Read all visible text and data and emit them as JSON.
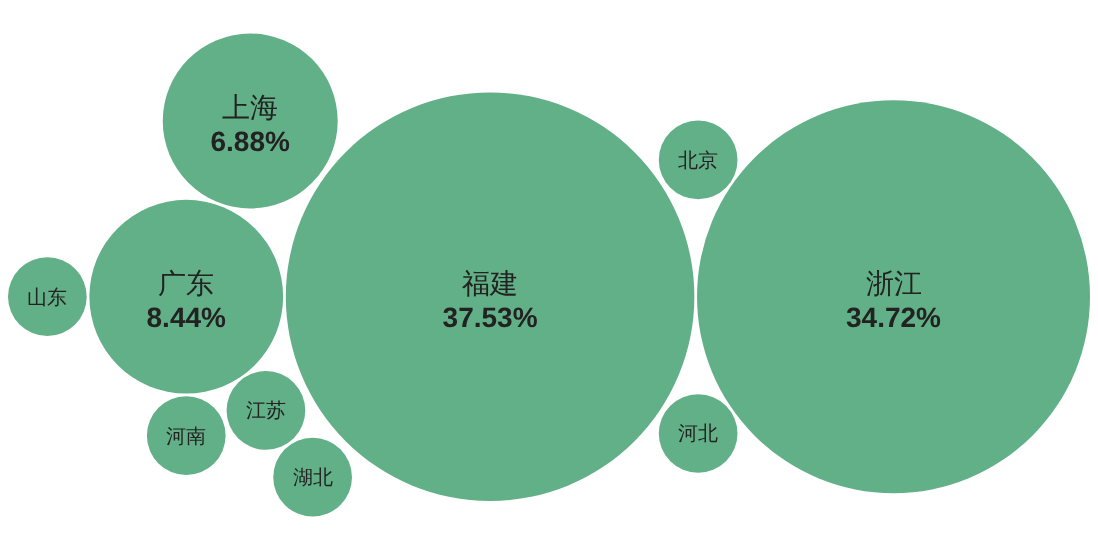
{
  "chart_data": {
    "type": "other",
    "categories": [
      "福建",
      "浙江",
      "广东",
      "上海",
      "江苏",
      "北京",
      "河北",
      "河南",
      "湖北",
      "山东"
    ],
    "values": [
      37.53,
      34.72,
      8.44,
      6.88,
      null,
      null,
      null,
      null,
      null,
      null
    ],
    "value_labels": [
      "37.53%",
      "34.72%",
      "8.44%",
      "6.88%",
      null,
      null,
      null,
      null,
      null,
      null
    ],
    "colors": [
      "#62b087",
      "#62b087",
      "#62b087",
      "#62b087",
      "#62b087",
      "#62b087",
      "#62b087",
      "#62b087",
      "#62b087",
      "#62b087"
    ]
  }
}
